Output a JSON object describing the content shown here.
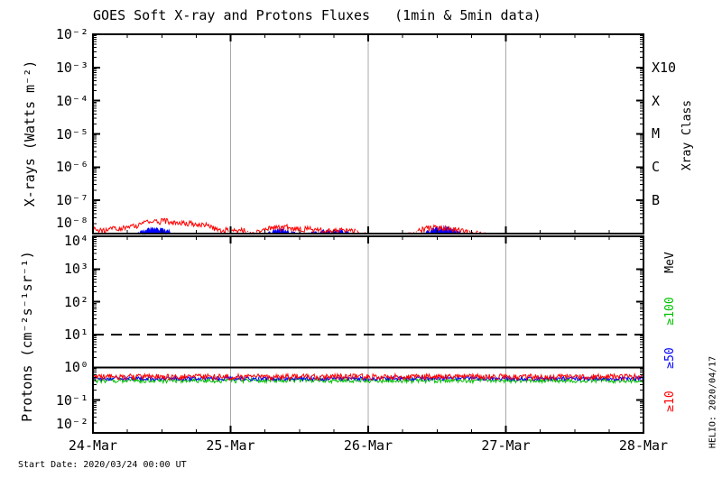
{
  "start_date": "Start Date: 2020/03/24 00:00 UT",
  "credit": "HELIO: 2020/04/17",
  "colors": {
    "red": "#ff0000",
    "blue": "#0000ff",
    "green": "#00c000",
    "grid": "#a8a8a8",
    "axis": "#000000",
    "background": "#ffffff"
  },
  "chart_data": [
    {
      "type": "line",
      "id": "xray-panel",
      "title": "GOES Soft X-ray and Protons Fluxes   (1min & 5min data)",
      "ylabel": "X-rays (Watts m⁻²)",
      "yticks": [
        "10⁻²",
        "10⁻³",
        "10⁻⁴",
        "10⁻⁵",
        "10⁻⁶",
        "10⁻⁷",
        "10⁻⁸"
      ],
      "ylim_exp": [
        -8,
        -2
      ],
      "grid": "vertical-day-lines",
      "x": {
        "tick_labels": [
          "24-Mar",
          "25-Mar",
          "26-Mar",
          "27-Mar",
          "28-Mar"
        ],
        "range_days": [
          0,
          4
        ],
        "minor_tick_days": 0.25
      },
      "right_axis": {
        "title": "Xray Class",
        "labels": [
          {
            "text": "X10",
            "at_exp": -3
          },
          {
            "text": "X",
            "at_exp": -4
          },
          {
            "text": "M",
            "at_exp": -5
          },
          {
            "text": "C",
            "at_exp": -6
          },
          {
            "text": "B",
            "at_exp": -7
          }
        ]
      },
      "clip_floor_exp": -8,
      "series": [
        {
          "name": "xray-short-wave",
          "color": "#0000ff",
          "style": "noisy-fill",
          "units": "1e-8 W m^-2",
          "noise_frac": 0.35,
          "envelope": [
            [
              0.0,
              0.55
            ],
            [
              0.2,
              0.6
            ],
            [
              0.28,
              0.75
            ],
            [
              0.34,
              1.0
            ],
            [
              0.4,
              1.25
            ],
            [
              0.46,
              1.3
            ],
            [
              0.52,
              1.2
            ],
            [
              0.58,
              1.0
            ],
            [
              0.64,
              0.8
            ],
            [
              0.75,
              0.6
            ],
            [
              1.15,
              0.55
            ],
            [
              1.22,
              0.7
            ],
            [
              1.28,
              1.0
            ],
            [
              1.33,
              1.2
            ],
            [
              1.38,
              1.25
            ],
            [
              1.43,
              1.1
            ],
            [
              1.5,
              0.9
            ],
            [
              1.6,
              1.0
            ],
            [
              1.7,
              1.15
            ],
            [
              1.8,
              1.1
            ],
            [
              1.88,
              0.95
            ],
            [
              1.95,
              0.65
            ],
            [
              2.05,
              0.5
            ],
            [
              2.3,
              0.5
            ],
            [
              2.4,
              0.9
            ],
            [
              2.46,
              1.25
            ],
            [
              2.52,
              1.4
            ],
            [
              2.58,
              1.35
            ],
            [
              2.64,
              1.15
            ],
            [
              2.7,
              0.9
            ],
            [
              2.78,
              0.6
            ],
            [
              2.9,
              0.45
            ],
            [
              4.0,
              0.4
            ]
          ]
        },
        {
          "name": "xray-long-wave",
          "color": "#ff0000",
          "style": "noisy-line",
          "units": "1e-8 W m^-2",
          "noise_frac": 0.4,
          "envelope": [
            [
              0.0,
              1.7
            ],
            [
              0.02,
              1.2
            ],
            [
              0.05,
              1.35
            ],
            [
              0.08,
              1.2
            ],
            [
              0.1,
              1.35
            ],
            [
              0.14,
              1.45
            ],
            [
              0.18,
              1.35
            ],
            [
              0.22,
              1.45
            ],
            [
              0.27,
              1.55
            ],
            [
              0.32,
              1.8
            ],
            [
              0.36,
              2.1
            ],
            [
              0.4,
              2.45
            ],
            [
              0.44,
              2.35
            ],
            [
              0.48,
              2.3
            ],
            [
              0.52,
              2.4
            ],
            [
              0.56,
              2.3
            ],
            [
              0.6,
              2.15
            ],
            [
              0.66,
              2.1
            ],
            [
              0.72,
              2.05
            ],
            [
              0.78,
              1.95
            ],
            [
              0.83,
              1.8
            ],
            [
              0.87,
              1.55
            ],
            [
              0.9,
              1.3
            ],
            [
              0.94,
              1.15
            ],
            [
              0.97,
              1.3
            ],
            [
              1.0,
              1.05
            ],
            [
              1.03,
              1.25
            ],
            [
              1.06,
              1.1
            ],
            [
              1.1,
              1.35
            ],
            [
              1.13,
              1.0
            ],
            [
              1.17,
              1.1
            ],
            [
              1.21,
              1.05
            ],
            [
              1.25,
              1.3
            ],
            [
              1.29,
              1.45
            ],
            [
              1.33,
              1.55
            ],
            [
              1.37,
              1.45
            ],
            [
              1.41,
              1.55
            ],
            [
              1.45,
              1.4
            ],
            [
              1.49,
              1.45
            ],
            [
              1.53,
              1.35
            ],
            [
              1.57,
              1.4
            ],
            [
              1.61,
              1.25
            ],
            [
              1.7,
              1.2
            ],
            [
              1.8,
              1.25
            ],
            [
              1.9,
              1.15
            ],
            [
              1.97,
              0.85
            ],
            [
              2.08,
              0.75
            ],
            [
              2.2,
              0.75
            ],
            [
              2.32,
              0.95
            ],
            [
              2.38,
              1.3
            ],
            [
              2.44,
              1.45
            ],
            [
              2.5,
              1.55
            ],
            [
              2.56,
              1.45
            ],
            [
              2.62,
              1.35
            ],
            [
              2.68,
              1.25
            ],
            [
              2.74,
              1.15
            ],
            [
              2.8,
              1.0
            ],
            [
              2.86,
              0.85
            ],
            [
              2.95,
              0.7
            ],
            [
              3.05,
              0.55
            ],
            [
              4.0,
              0.5
            ]
          ]
        }
      ]
    },
    {
      "type": "line",
      "id": "proton-panel",
      "ylabel": "Protons (cm⁻²s⁻¹sr⁻¹)",
      "yticks": [
        "10⁴",
        "10³",
        "10²",
        "10¹",
        "10⁰",
        "10⁻¹",
        "10⁻²"
      ],
      "ylim_exp": [
        -2,
        4
      ],
      "grid": "vertical-day-lines",
      "right_axis": {
        "title": "MeV",
        "labels": [
          {
            "text": "≥100",
            "color": "#00c000"
          },
          {
            "text": "≥50",
            "color": "#0000ff"
          },
          {
            "text": "≥10",
            "color": "#ff0000"
          }
        ]
      },
      "thresholds": [
        {
          "value": 10,
          "style": "dashed"
        },
        {
          "value": 1,
          "style": "solid"
        }
      ],
      "series": [
        {
          "name": "protons-ge100MeV",
          "color": "#00c000",
          "style": "noisy-line",
          "units": "pfu",
          "level": 0.4,
          "noise_frac": 0.32
        },
        {
          "name": "protons-ge50MeV",
          "color": "#0000ff",
          "style": "noisy-line",
          "units": "pfu",
          "level": 0.46,
          "noise_frac": 0.28
        },
        {
          "name": "protons-ge10MeV",
          "color": "#ff0000",
          "style": "noisy-line",
          "units": "pfu",
          "level": 0.52,
          "noise_frac": 0.42
        }
      ]
    }
  ]
}
